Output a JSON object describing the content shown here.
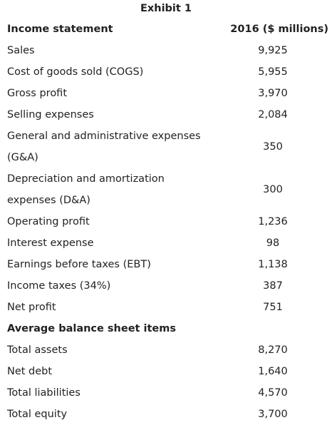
{
  "title": "Exhibit 1",
  "table": {
    "header": [
      "Income statement",
      "2016 ($ millions)"
    ],
    "rows": [
      {
        "label": [
          "Sales"
        ],
        "value": "9,925"
      },
      {
        "label": [
          "Cost of goods sold (COGS)"
        ],
        "value": "5,955"
      },
      {
        "label": [
          "Gross profit"
        ],
        "value": "3,970"
      },
      {
        "label": [
          "Selling expenses"
        ],
        "value": "2,084"
      },
      {
        "label": [
          "General and administrative expenses",
          "(G&A)"
        ],
        "value": "350"
      },
      {
        "label": [
          "Depreciation and amortization",
          "expenses (D&A)"
        ],
        "value": "300"
      },
      {
        "label": [
          "Operating profit"
        ],
        "value": "1,236"
      },
      {
        "label": [
          "Interest expense"
        ],
        "value": "98"
      },
      {
        "label": [
          "Earnings before taxes (EBT)"
        ],
        "value": "1,138"
      },
      {
        "label": [
          "Income taxes (34%)"
        ],
        "value": "387"
      },
      {
        "label": [
          "Net profit"
        ],
        "value": "751"
      },
      {
        "section": "Average balance sheet items"
      },
      {
        "label": [
          "Total assets"
        ],
        "value": "8,270"
      },
      {
        "label": [
          "Net debt"
        ],
        "value": "1,640"
      },
      {
        "label": [
          "Total liabilities"
        ],
        "value": "4,570"
      },
      {
        "label": [
          "Total equity"
        ],
        "value": "3,700"
      }
    ]
  }
}
